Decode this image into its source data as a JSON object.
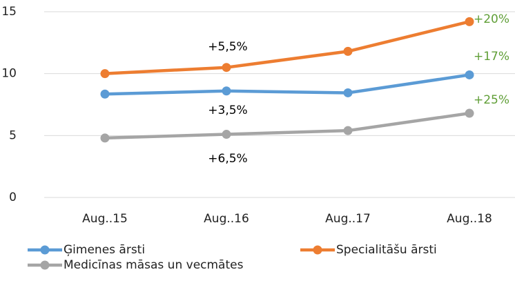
{
  "chart_data": {
    "type": "line",
    "categories": [
      "Aug..15",
      "Aug..16",
      "Aug..17",
      "Aug..18"
    ],
    "series": [
      {
        "name": "Ģimenes ārsti",
        "color": "#5b9bd5",
        "values": [
          8.35,
          8.6,
          8.45,
          9.9
        ]
      },
      {
        "name": "Specialitāšu ārsti",
        "color": "#ed7d31",
        "values": [
          10.0,
          10.5,
          11.8,
          14.2
        ]
      },
      {
        "name": "Medicīnas māsas un vecmātes",
        "color": "#a5a5a5",
        "values": [
          4.8,
          5.1,
          5.4,
          6.8
        ]
      }
    ],
    "ylim": [
      0,
      15
    ],
    "yticks": [
      0,
      5,
      10,
      15
    ],
    "grid": true,
    "annotations": [
      {
        "text": "+5,5%",
        "color": "#000000"
      },
      {
        "text": "+3,5%",
        "color": "#000000"
      },
      {
        "text": "+6,5%",
        "color": "#000000"
      },
      {
        "text": "+20%",
        "color": "#5f9e36"
      },
      {
        "text": "+17%",
        "color": "#5f9e36"
      },
      {
        "text": "+25%",
        "color": "#5f9e36"
      }
    ]
  }
}
